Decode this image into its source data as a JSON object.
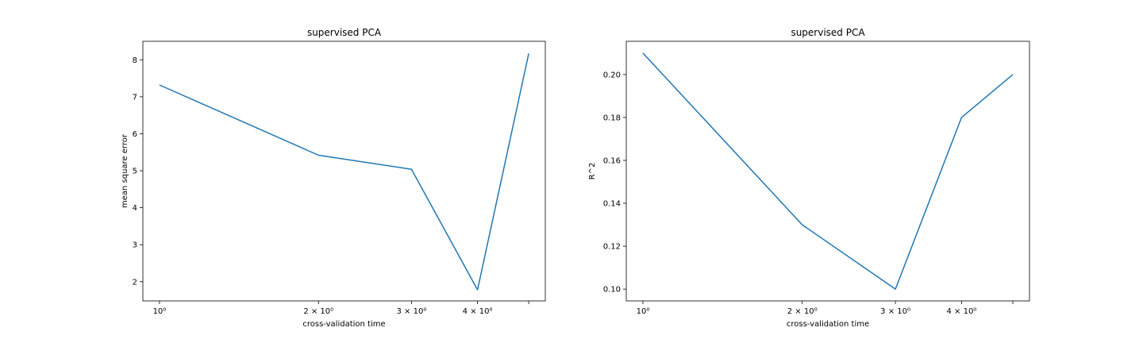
{
  "chart_data": [
    {
      "type": "line",
      "title": "supervised PCA",
      "xlabel": "cross-validation time",
      "ylabel": "mean square error",
      "xscale": "log",
      "x": [
        1,
        2,
        3,
        4,
        5
      ],
      "xticks": [
        {
          "value": 1,
          "label": "10⁰"
        },
        {
          "value": 2,
          "label": "2 × 10⁰"
        },
        {
          "value": 3,
          "label": "3 × 10⁰"
        },
        {
          "value": 4,
          "label": "4 × 10⁰"
        },
        {
          "value": 5,
          "label": ""
        }
      ],
      "yticks": [
        2,
        3,
        4,
        5,
        6,
        7,
        8
      ],
      "ylim": [
        1.48,
        8.5
      ],
      "series": [
        {
          "values": [
            7.32,
            5.42,
            5.04,
            1.78,
            8.17
          ],
          "color": "#1f77b4"
        }
      ],
      "grid": false
    },
    {
      "type": "line",
      "title": "supervised PCA",
      "xlabel": "cross-validation time",
      "ylabel": "R^2",
      "xscale": "log",
      "x": [
        1,
        2,
        3,
        4,
        5
      ],
      "xticks": [
        {
          "value": 1,
          "label": "10⁰"
        },
        {
          "value": 2,
          "label": "2 × 10⁰"
        },
        {
          "value": 3,
          "label": "3 × 10⁰"
        },
        {
          "value": 4,
          "label": "4 × 10⁰"
        },
        {
          "value": 5,
          "label": ""
        }
      ],
      "yticks": [
        0.1,
        0.12,
        0.14,
        0.16,
        0.18,
        0.2
      ],
      "ytick_decimals": 2,
      "ylim": [
        0.0945,
        0.2155
      ],
      "series": [
        {
          "values": [
            0.21,
            0.13,
            0.1,
            0.18,
            0.2
          ],
          "color": "#1f77b4"
        }
      ],
      "grid": false
    }
  ]
}
